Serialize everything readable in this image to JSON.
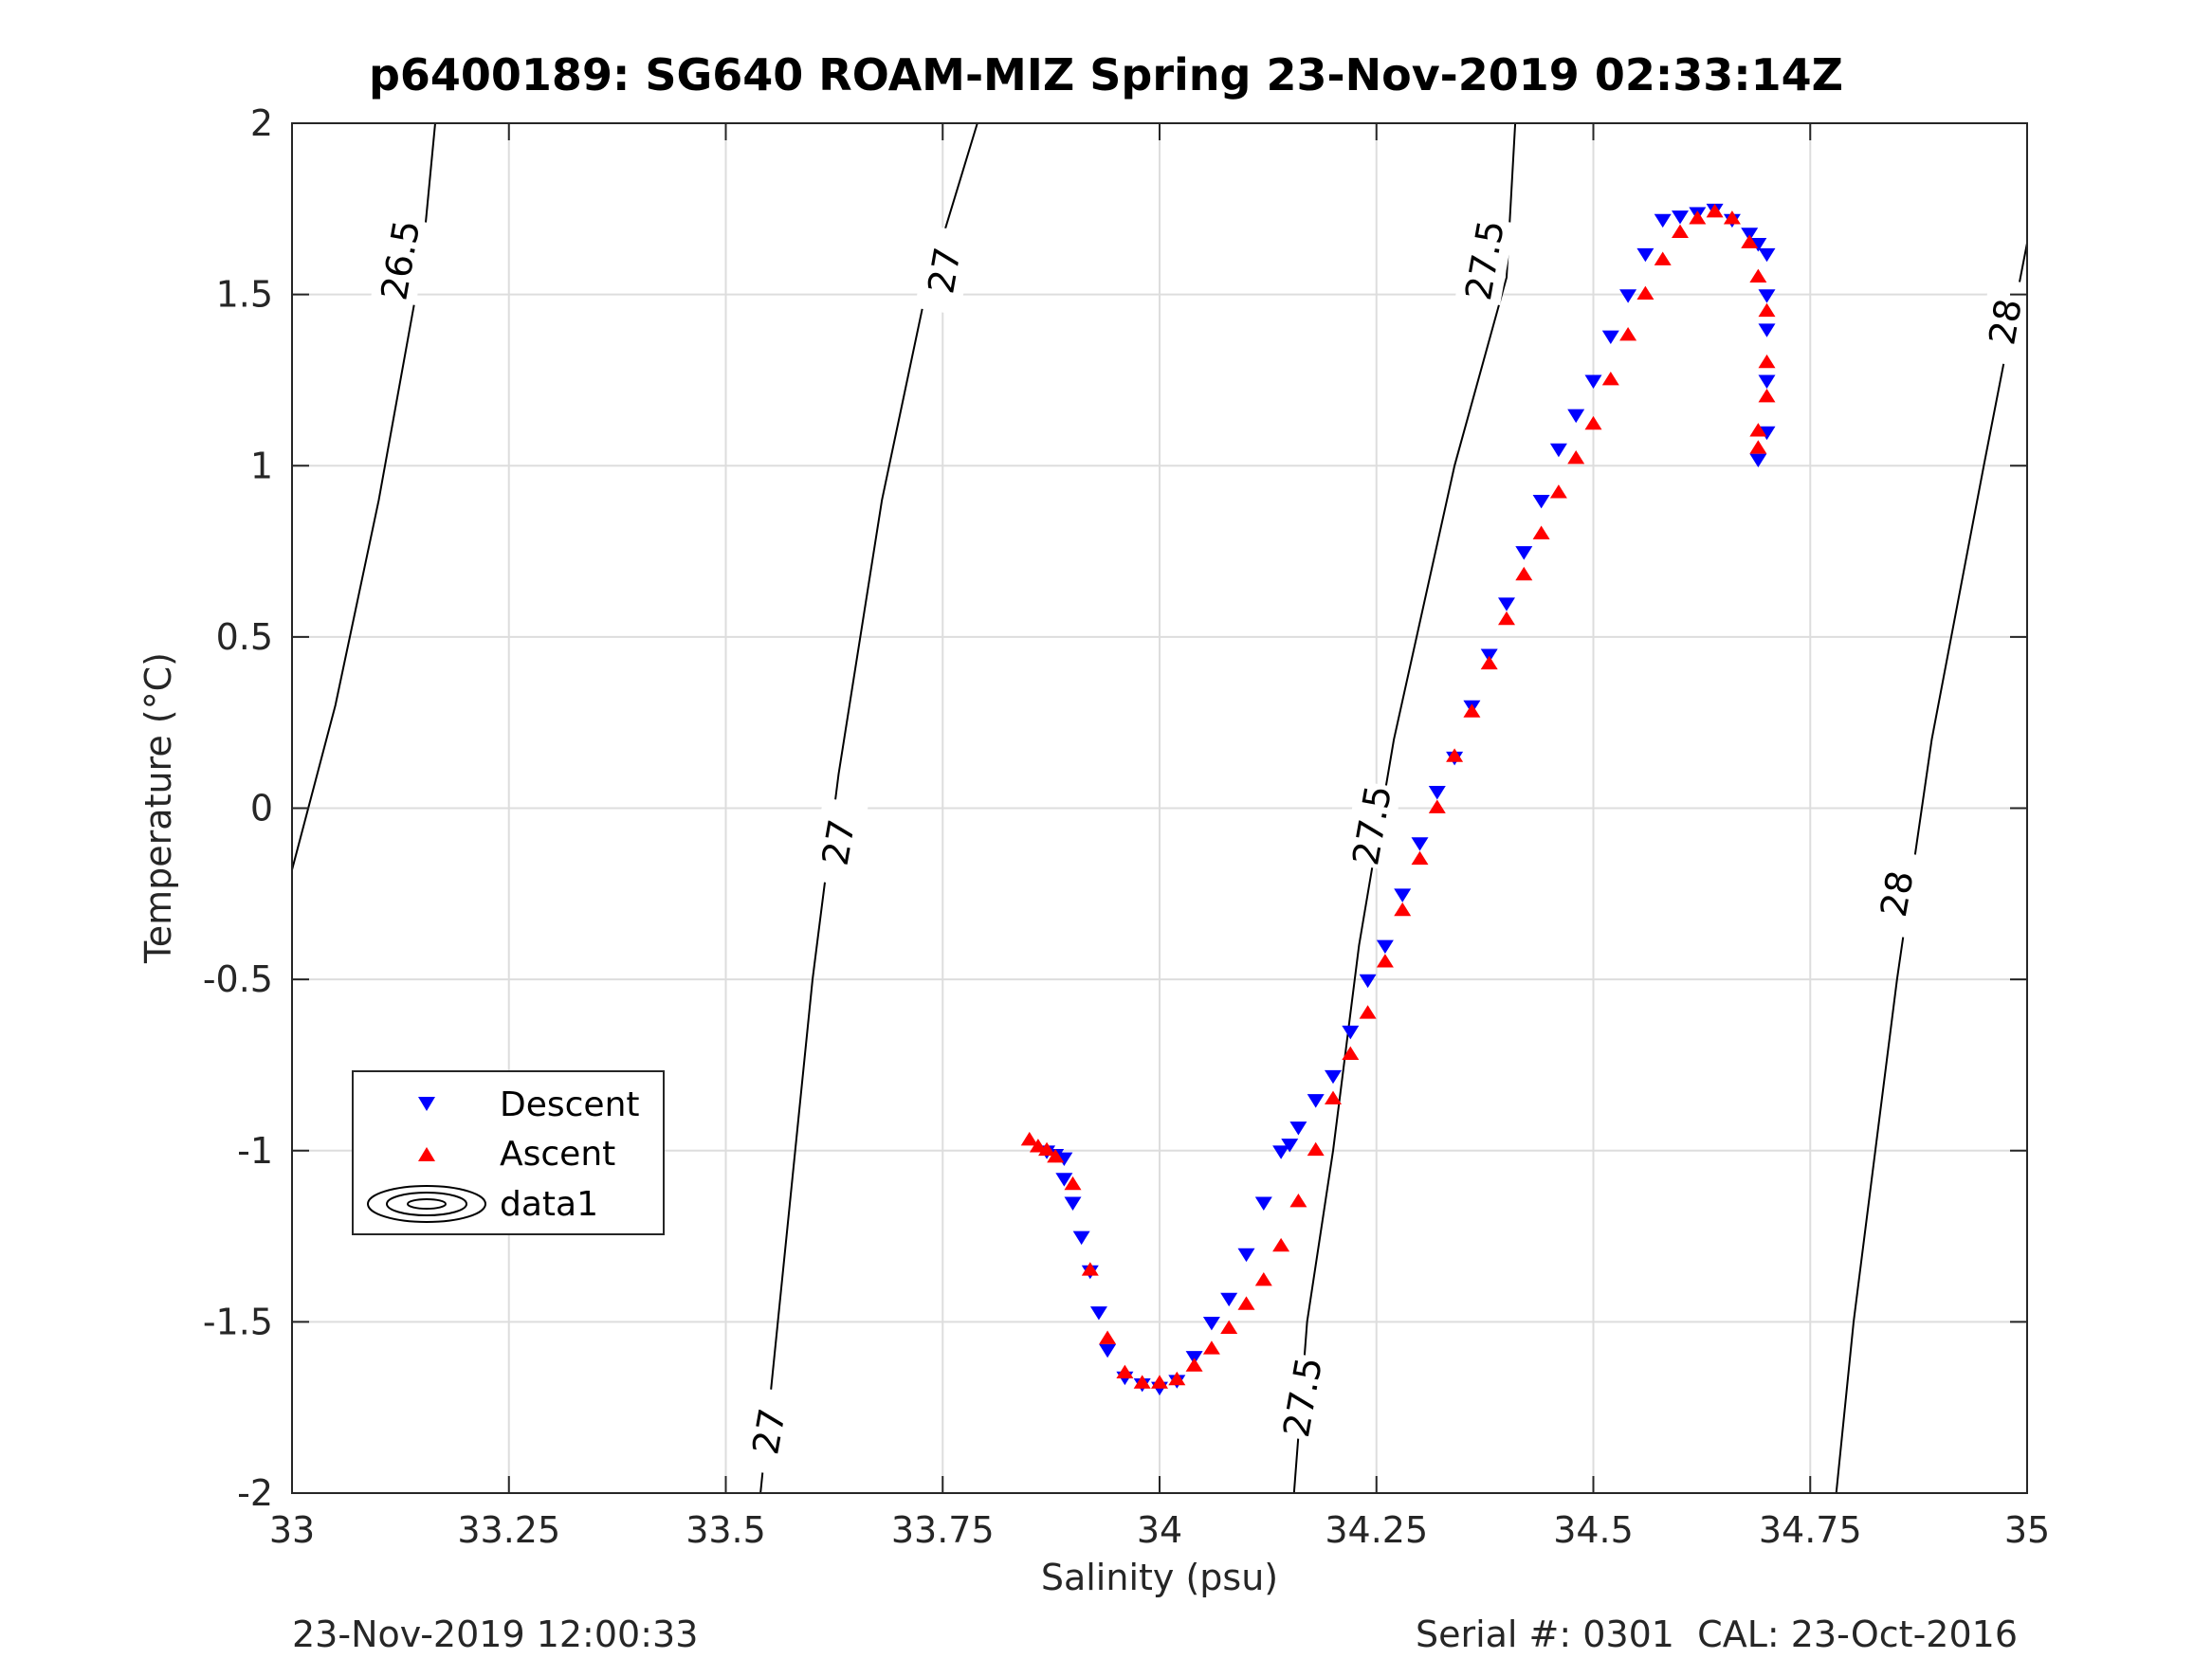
{
  "chart_data": {
    "type": "scatter",
    "title": "p6400189: SG640 ROAM-MIZ Spring 23-Nov-2019 02:33:14Z",
    "xlabel": "Salinity (psu)",
    "ylabel": "Temperature (°C)",
    "xlim": [
      33,
      35
    ],
    "ylim": [
      -2,
      2
    ],
    "x_ticks": [
      "33",
      "33.25",
      "33.5",
      "33.75",
      "34",
      "34.25",
      "34.5",
      "34.75",
      "35"
    ],
    "y_ticks": [
      "2",
      "1.5",
      "1",
      "0.5",
      "0",
      "-0.5",
      "-1",
      "-1.5",
      "-2"
    ],
    "grid": true,
    "legend": {
      "placement": "lower-left",
      "entries": [
        {
          "label": "Descent",
          "marker": "triangle-down",
          "color": "#0000ff"
        },
        {
          "label": "Ascent",
          "marker": "triangle-up",
          "color": "#ff0000"
        },
        {
          "label": "data1",
          "marker": "contour",
          "color": "#000000"
        }
      ]
    },
    "contours": [
      {
        "level": "26.5",
        "points": [
          [
            33.0,
            -0.18
          ],
          [
            33.05,
            0.3
          ],
          [
            33.1,
            0.9
          ],
          [
            33.15,
            1.6
          ],
          [
            33.165,
            2.0
          ]
        ],
        "labels": [
          {
            "text": "26.5",
            "x": 33.125,
            "y": 1.6
          }
        ]
      },
      {
        "level": "27",
        "points": [
          [
            33.54,
            -2.0
          ],
          [
            33.56,
            -1.5
          ],
          [
            33.6,
            -0.5
          ],
          [
            33.63,
            0.1
          ],
          [
            33.68,
            0.9
          ],
          [
            33.73,
            1.5
          ],
          [
            33.79,
            2.0
          ]
        ],
        "labels": [
          {
            "text": "27",
            "x": 33.55,
            "y": -1.82
          },
          {
            "text": "27",
            "x": 33.63,
            "y": -0.1
          },
          {
            "text": "27",
            "x": 33.752,
            "y": 1.57
          }
        ]
      },
      {
        "level": "27.5",
        "points": [
          [
            34.155,
            -2.0
          ],
          [
            34.17,
            -1.5
          ],
          [
            34.2,
            -1.0
          ],
          [
            34.23,
            -0.4
          ],
          [
            34.27,
            0.2
          ],
          [
            34.34,
            1.0
          ],
          [
            34.4,
            1.55
          ],
          [
            34.41,
            2.0
          ]
        ],
        "labels": [
          {
            "text": "27.5",
            "x": 34.165,
            "y": -1.72
          },
          {
            "text": "27.5",
            "x": 34.245,
            "y": -0.05
          },
          {
            "text": "27.5",
            "x": 34.375,
            "y": 1.6
          }
        ]
      },
      {
        "level": "28",
        "points": [
          [
            34.78,
            -2.0
          ],
          [
            34.8,
            -1.5
          ],
          [
            34.85,
            -0.5
          ],
          [
            34.89,
            0.2
          ],
          [
            34.95,
            1.0
          ],
          [
            35.0,
            1.65
          ]
        ],
        "labels": [
          {
            "text": "28",
            "x": 34.85,
            "y": -0.25
          },
          {
            "text": "28",
            "x": 34.975,
            "y": 1.42
          }
        ]
      }
    ],
    "series": [
      {
        "name": "Descent",
        "marker": "triangle-down",
        "color": "#0000ff",
        "x": [
          33.87,
          33.88,
          33.89,
          33.89,
          33.9,
          33.91,
          33.92,
          33.93,
          33.94,
          33.96,
          33.98,
          34.0,
          34.02,
          34.04,
          34.06,
          34.08,
          34.1,
          34.12,
          34.14,
          34.15,
          34.16,
          34.18,
          34.2,
          34.22,
          34.24,
          34.26,
          34.28,
          34.3,
          34.32,
          34.34,
          34.36,
          34.38,
          34.4,
          34.42,
          34.44,
          34.46,
          34.48,
          34.5,
          34.52,
          34.54,
          34.56,
          34.58,
          34.6,
          34.62,
          34.64,
          34.66,
          34.68,
          34.69,
          34.7,
          34.7,
          34.7,
          34.7,
          34.7,
          34.69
        ],
        "y": [
          -1.0,
          -1.01,
          -1.02,
          -1.08,
          -1.15,
          -1.25,
          -1.35,
          -1.47,
          -1.58,
          -1.66,
          -1.68,
          -1.69,
          -1.67,
          -1.6,
          -1.5,
          -1.43,
          -1.3,
          -1.15,
          -1.0,
          -0.98,
          -0.93,
          -0.85,
          -0.78,
          -0.65,
          -0.5,
          -0.4,
          -0.25,
          -0.1,
          0.05,
          0.15,
          0.3,
          0.45,
          0.6,
          0.75,
          0.9,
          1.05,
          1.15,
          1.25,
          1.38,
          1.5,
          1.62,
          1.72,
          1.73,
          1.74,
          1.75,
          1.72,
          1.68,
          1.65,
          1.62,
          1.5,
          1.4,
          1.25,
          1.1,
          1.02
        ]
      },
      {
        "name": "Ascent",
        "marker": "triangle-up",
        "color": "#ff0000",
        "x": [
          33.85,
          33.86,
          33.87,
          33.88,
          33.9,
          33.92,
          33.94,
          33.96,
          33.98,
          34.0,
          34.02,
          34.04,
          34.06,
          34.08,
          34.1,
          34.12,
          34.14,
          34.16,
          34.18,
          34.2,
          34.22,
          34.24,
          34.26,
          34.28,
          34.3,
          34.32,
          34.34,
          34.36,
          34.38,
          34.4,
          34.42,
          34.44,
          34.46,
          34.48,
          34.5,
          34.52,
          34.54,
          34.56,
          34.58,
          34.6,
          34.62,
          34.64,
          34.66,
          34.68,
          34.69,
          34.7,
          34.7,
          34.7,
          34.69,
          34.69
        ],
        "y": [
          -0.97,
          -0.99,
          -1.0,
          -1.02,
          -1.1,
          -1.35,
          -1.55,
          -1.65,
          -1.68,
          -1.68,
          -1.67,
          -1.63,
          -1.58,
          -1.52,
          -1.45,
          -1.38,
          -1.28,
          -1.15,
          -1.0,
          -0.85,
          -0.72,
          -0.6,
          -0.45,
          -0.3,
          -0.15,
          0.0,
          0.15,
          0.28,
          0.42,
          0.55,
          0.68,
          0.8,
          0.92,
          1.02,
          1.12,
          1.25,
          1.38,
          1.5,
          1.6,
          1.68,
          1.72,
          1.74,
          1.72,
          1.65,
          1.55,
          1.45,
          1.3,
          1.2,
          1.1,
          1.05
        ]
      }
    ]
  },
  "footer": {
    "timestamp": "23-Nov-2019 12:00:33",
    "serial": "Serial #: 0301",
    "cal": "CAL: 23-Oct-2016"
  },
  "colors": {
    "descent": "#0000ff",
    "ascent": "#ff0000",
    "grid": "#dddddd",
    "axis_text": "#262626"
  }
}
